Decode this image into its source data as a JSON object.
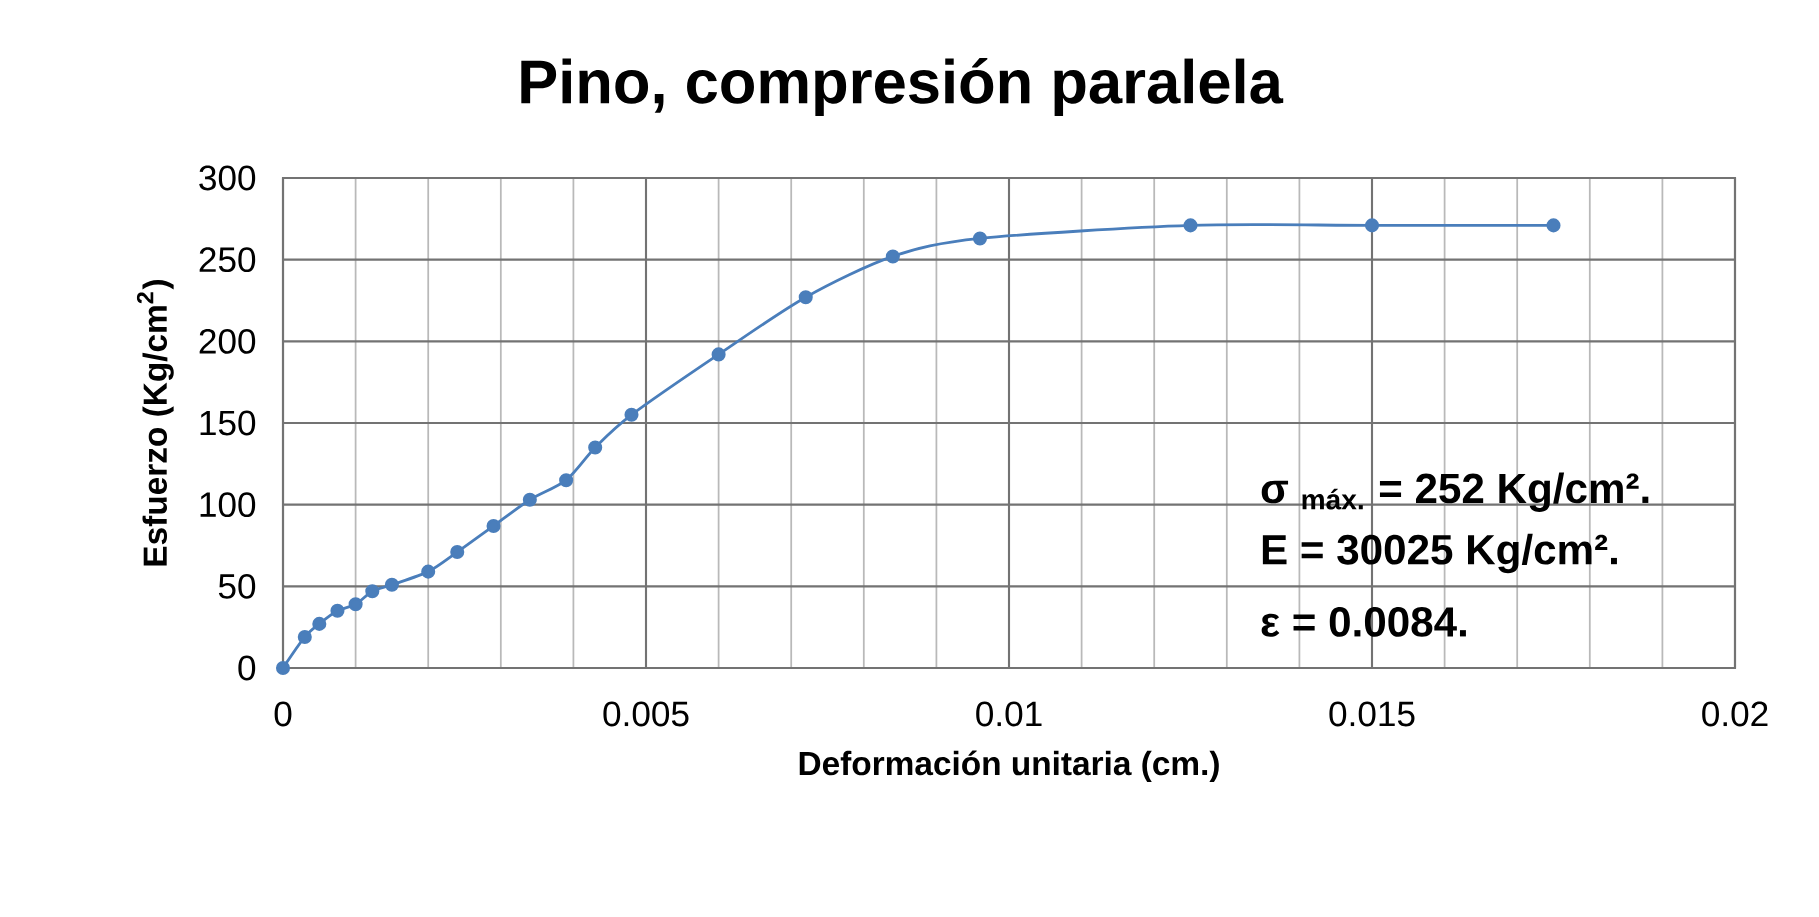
{
  "chart_data": {
    "type": "line",
    "title": "Pino, compresión paralela",
    "xlabel": "Deformación unitaria (cm.)",
    "ylabel": "Esfuerzo (Kg/cm$^{2}$)",
    "xlim": [
      0,
      0.02
    ],
    "ylim": [
      0,
      300
    ],
    "xticks": [
      0,
      0.005,
      0.01,
      0.015,
      0.02
    ],
    "yticks": [
      0,
      50,
      100,
      150,
      200,
      250,
      300
    ],
    "grid": true,
    "marker": "circle",
    "line_style": "solid",
    "annotations": [
      "σ $_{máx.}$ = 252 Kg/cm².",
      "E = 30025 Kg/cm².",
      "ε = 0.0084."
    ],
    "series": [
      {
        "color": "#4a7ebb",
        "x": [
          0,
          0.0003,
          0.0005,
          0.00075,
          0.001,
          0.00123,
          0.0015,
          0.002,
          0.0024,
          0.0029,
          0.0034,
          0.0039,
          0.0043,
          0.0048,
          0.006,
          0.0072,
          0.0084,
          0.0096,
          0.0125,
          0.015,
          0.0175
        ],
        "values": [
          0,
          19,
          27,
          35,
          39,
          47,
          51,
          59,
          71,
          87,
          103,
          115,
          135,
          155,
          192,
          227,
          252,
          263,
          271,
          271,
          271
        ]
      }
    ]
  }
}
